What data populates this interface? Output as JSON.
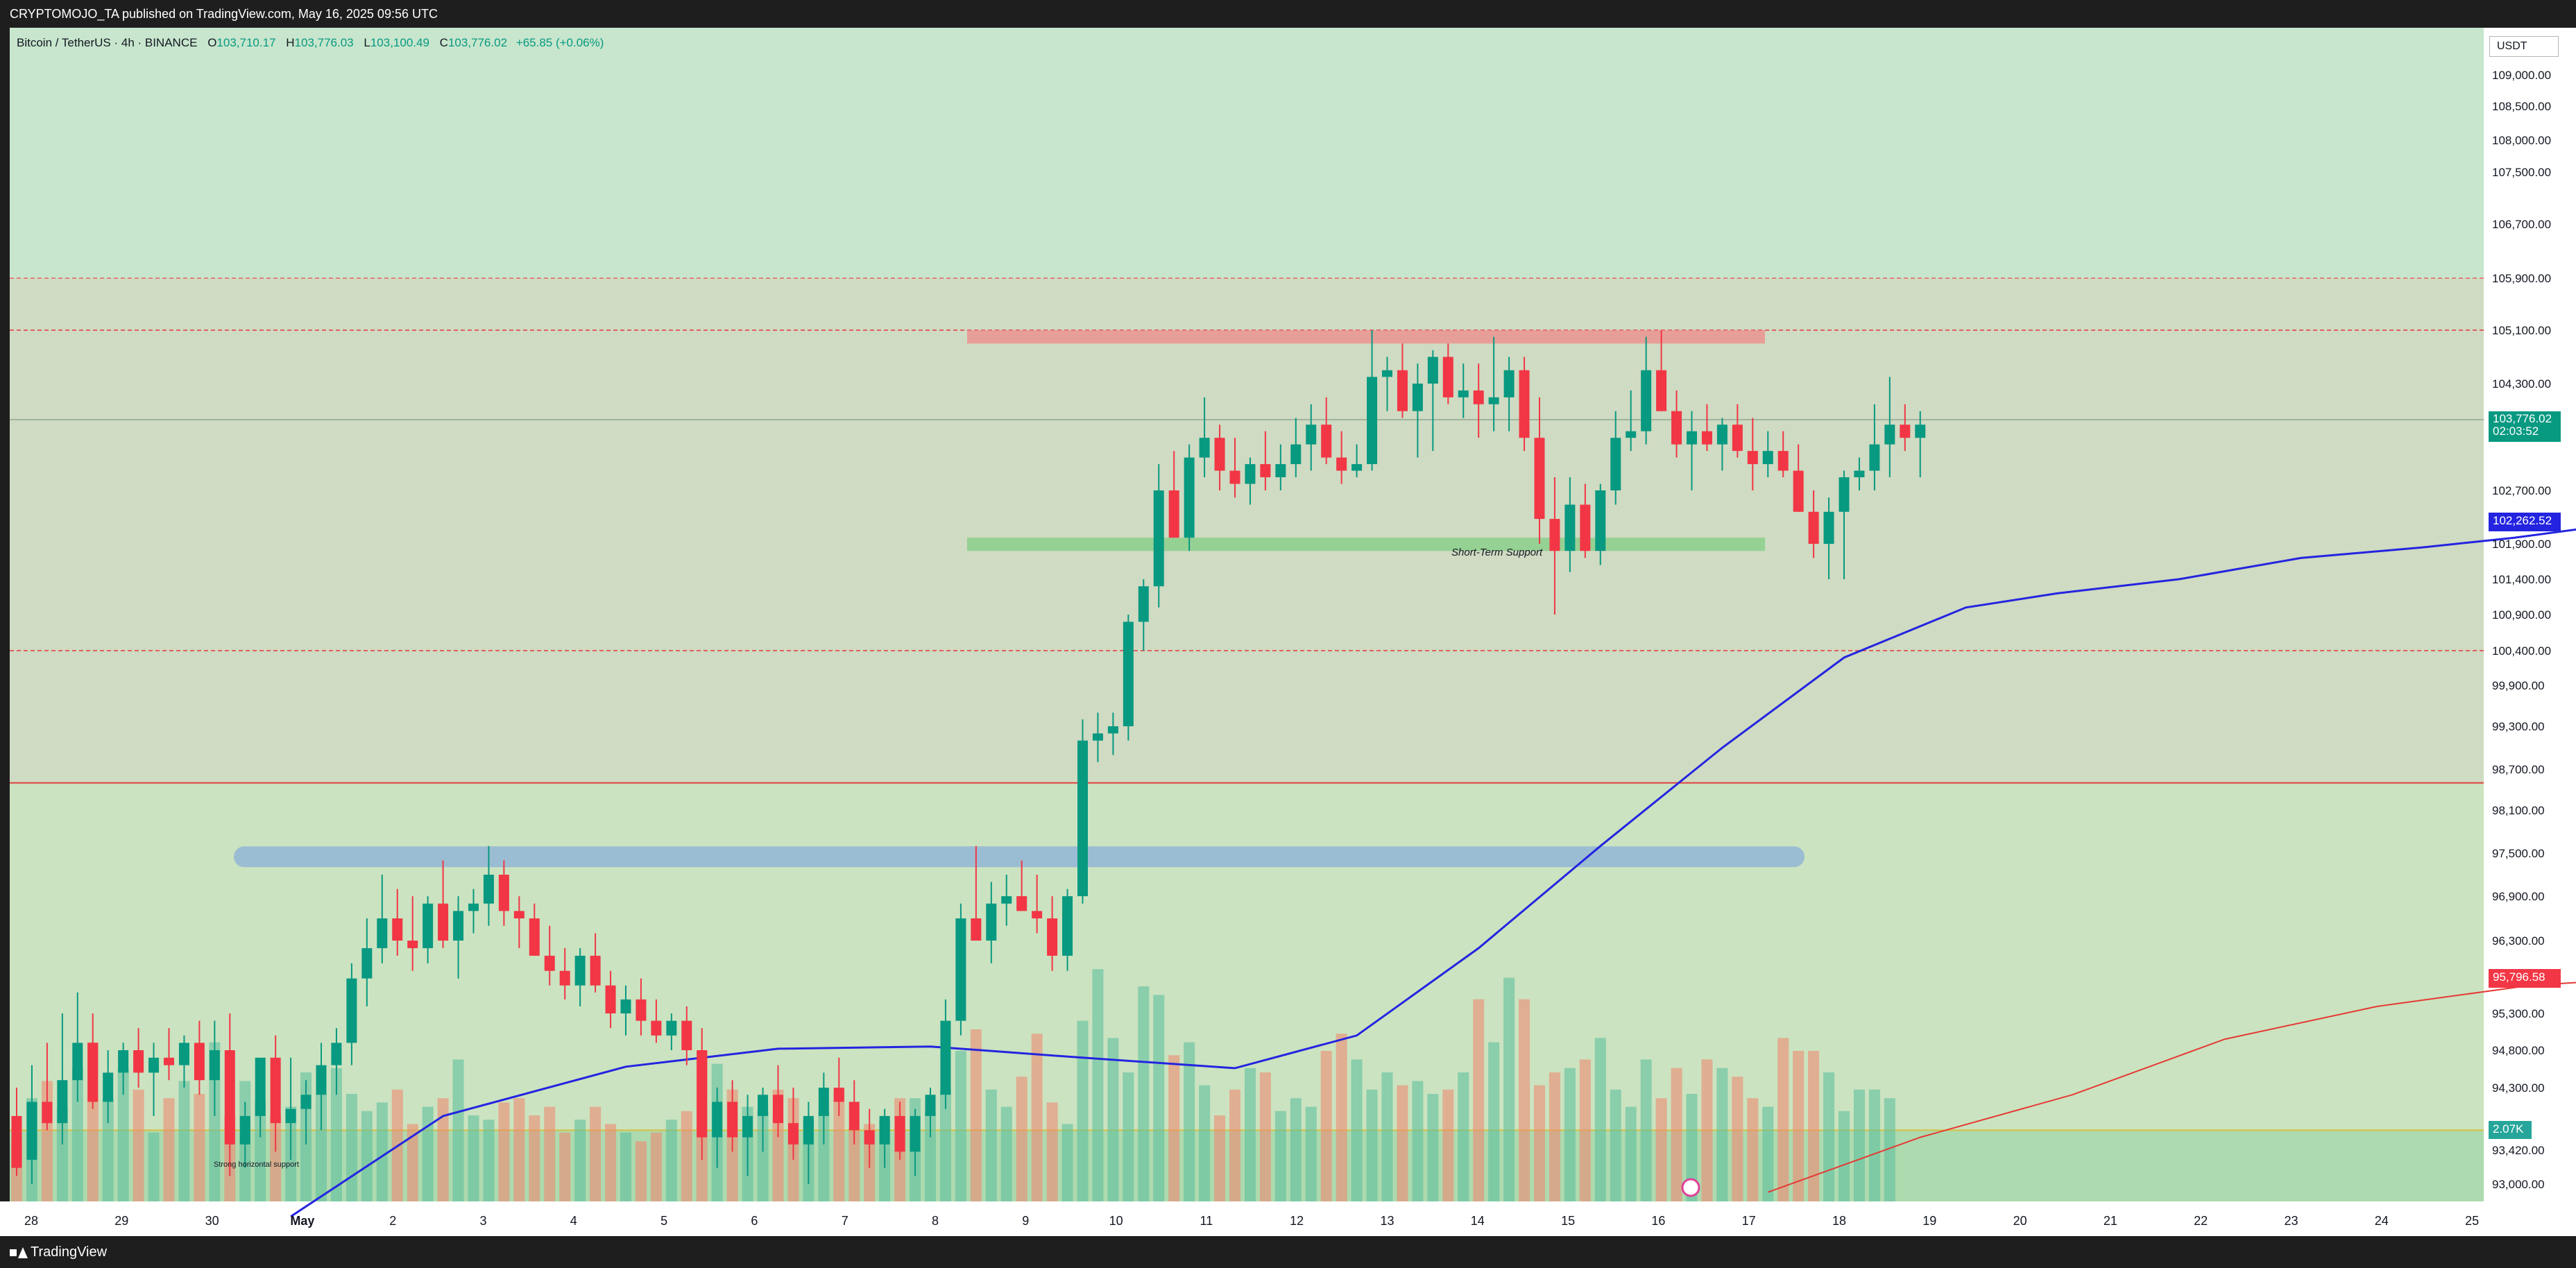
{
  "header": {
    "publisher": "CRYPTOMOJO_TA published on TradingView.com, May 16, 2025 09:56 UTC"
  },
  "footer": {
    "brand": "TradingView"
  },
  "legend": {
    "symbol": "Bitcoin / TetherUS · 4h · BINANCE",
    "o_label": "O",
    "o": "103,710.17",
    "h_label": "H",
    "h": "103,776.03",
    "l_label": "L",
    "l": "103,100.49",
    "c_label": "C",
    "c": "103,776.02",
    "change": "+65.85 (+0.06%)"
  },
  "currency": "USDT",
  "badges": {
    "price": "103,776.02",
    "countdown": "02:03:52",
    "ma_blue": "102,262.52",
    "ma_red": "95,796.58",
    "volume": "2.07K"
  },
  "colors": {
    "up": "#089981",
    "down": "#f23645",
    "ma_blue": "#2424e0",
    "ma_red": "#e53935",
    "bg_top": "#c7e6cd",
    "bg_mid": "#cfdbc2",
    "bg_low": "#cbe3c0"
  },
  "chart_data": {
    "type": "candlestick",
    "title": "Bitcoin / TetherUS · 4h · BINANCE",
    "y_ticks": [
      "109,000.00",
      "108,500.00",
      "108,000.00",
      "107,500.00",
      "106,700.00",
      "105,900.00",
      "105,100.00",
      "104,300.00",
      "102,700.00",
      "101,900.00",
      "101,400.00",
      "100,900.00",
      "100,400.00",
      "99,900.00",
      "99,300.00",
      "98,700.00",
      "98,100.00",
      "97,500.00",
      "96,900.00",
      "96,300.00",
      "95,300.00",
      "94,800.00",
      "94,300.00",
      "93,420.00",
      "93,000.00"
    ],
    "x_ticks": [
      "28",
      "29",
      "30",
      "May",
      "2",
      "3",
      "4",
      "5",
      "6",
      "7",
      "8",
      "9",
      "10",
      "11",
      "12",
      "13",
      "14",
      "15",
      "16",
      "17",
      "18",
      "19",
      "20",
      "21",
      "22",
      "23",
      "24",
      "25"
    ],
    "annotations": {
      "short_term_support": "Short-Term Support",
      "strong_support": "Strong horizontal support"
    },
    "horizontal_levels": [
      105900,
      105100,
      103776,
      100400,
      98500,
      93700
    ],
    "resistance_zone": [
      104900,
      105100
    ],
    "support_zone": [
      101800,
      102000
    ],
    "horizontal_support_band": 97450,
    "candles": [
      [
        93900,
        94300,
        93100,
        93200
      ],
      [
        93300,
        94600,
        93000,
        94100
      ],
      [
        94100,
        94900,
        93700,
        93800
      ],
      [
        93800,
        95300,
        93500,
        94400
      ],
      [
        94400,
        95600,
        94100,
        94900
      ],
      [
        94900,
        95300,
        94000,
        94100
      ],
      [
        94100,
        94800,
        93800,
        94500
      ],
      [
        94500,
        94900,
        94200,
        94800
      ],
      [
        94800,
        95100,
        94300,
        94500
      ],
      [
        94500,
        94900,
        93900,
        94700
      ],
      [
        94700,
        95100,
        94400,
        94600
      ],
      [
        94600,
        95000,
        94300,
        94900
      ],
      [
        94900,
        95200,
        94200,
        94400
      ],
      [
        94400,
        95200,
        93900,
        94800
      ],
      [
        94800,
        95300,
        93100,
        93500
      ],
      [
        93500,
        94100,
        93200,
        93900
      ],
      [
        93900,
        94600,
        93600,
        94700
      ],
      [
        94700,
        95000,
        93400,
        93800
      ],
      [
        93800,
        94700,
        93300,
        94000
      ],
      [
        94000,
        94400,
        93500,
        94200
      ],
      [
        94200,
        94900,
        93700,
        94600
      ],
      [
        94600,
        95100,
        94200,
        94900
      ],
      [
        94900,
        96000,
        94600,
        95800
      ],
      [
        95800,
        96600,
        95400,
        96200
      ],
      [
        96200,
        97200,
        96000,
        96600
      ],
      [
        96600,
        97000,
        96100,
        96300
      ],
      [
        96300,
        96900,
        95900,
        96200
      ],
      [
        96200,
        96900,
        96000,
        96800
      ],
      [
        96800,
        97400,
        96200,
        96300
      ],
      [
        96300,
        96900,
        95800,
        96700
      ],
      [
        96700,
        97000,
        96400,
        96800
      ],
      [
        96800,
        97600,
        96500,
        97200
      ],
      [
        97200,
        97400,
        96500,
        96700
      ],
      [
        96700,
        96900,
        96200,
        96600
      ],
      [
        96600,
        96800,
        96100,
        96100
      ],
      [
        96100,
        96500,
        95700,
        95900
      ],
      [
        95900,
        96200,
        95500,
        95700
      ],
      [
        95700,
        96200,
        95400,
        96100
      ],
      [
        96100,
        96400,
        95600,
        95700
      ],
      [
        95700,
        95900,
        95100,
        95300
      ],
      [
        95300,
        95700,
        95000,
        95500
      ],
      [
        95500,
        95800,
        95000,
        95200
      ],
      [
        95200,
        95500,
        94900,
        95000
      ],
      [
        95000,
        95300,
        94800,
        95200
      ],
      [
        95200,
        95400,
        94600,
        94800
      ],
      [
        94800,
        95100,
        93300,
        93600
      ],
      [
        93600,
        94300,
        93200,
        94100
      ],
      [
        94100,
        94400,
        93400,
        93600
      ],
      [
        93600,
        94200,
        93100,
        93900
      ],
      [
        93900,
        94300,
        93400,
        94200
      ],
      [
        94200,
        94600,
        93600,
        93800
      ],
      [
        93800,
        94300,
        93300,
        93500
      ],
      [
        93500,
        94100,
        93000,
        93900
      ],
      [
        93900,
        94500,
        93500,
        94300
      ],
      [
        94300,
        94700,
        93900,
        94100
      ],
      [
        94100,
        94400,
        93500,
        93700
      ],
      [
        93700,
        94000,
        93200,
        93500
      ],
      [
        93500,
        94000,
        93200,
        93900
      ],
      [
        93900,
        94100,
        93300,
        93400
      ],
      [
        93400,
        94000,
        93100,
        93900
      ],
      [
        93900,
        94300,
        93600,
        94200
      ],
      [
        94200,
        95500,
        94000,
        95200
      ],
      [
        95200,
        96800,
        95000,
        96600
      ],
      [
        96600,
        97600,
        96300,
        96300
      ],
      [
        96300,
        97100,
        96000,
        96800
      ],
      [
        96800,
        97200,
        96500,
        96900
      ],
      [
        96900,
        97400,
        96700,
        96700
      ],
      [
        96700,
        97200,
        96400,
        96600
      ],
      [
        96600,
        96900,
        95900,
        96100
      ],
      [
        96100,
        97000,
        95900,
        96900
      ],
      [
        96900,
        99400,
        96800,
        99100
      ],
      [
        99100,
        99500,
        98800,
        99200
      ],
      [
        99200,
        99500,
        98900,
        99300
      ],
      [
        99300,
        100900,
        99100,
        100800
      ],
      [
        100800,
        101400,
        100400,
        101300
      ],
      [
        101300,
        103100,
        101000,
        102700
      ],
      [
        102700,
        103300,
        102000,
        102000
      ],
      [
        102000,
        103400,
        101800,
        103200
      ],
      [
        103200,
        104100,
        102900,
        103500
      ],
      [
        103500,
        103700,
        102700,
        103000
      ],
      [
        103000,
        103500,
        102600,
        102800
      ],
      [
        102800,
        103200,
        102500,
        103100
      ],
      [
        103100,
        103600,
        102700,
        102900
      ],
      [
        102900,
        103400,
        102700,
        103100
      ],
      [
        103100,
        103800,
        102900,
        103400
      ],
      [
        103400,
        104000,
        103000,
        103700
      ],
      [
        103700,
        104100,
        103100,
        103200
      ],
      [
        103200,
        103600,
        102800,
        103000
      ],
      [
        103000,
        103400,
        102900,
        103100
      ],
      [
        103100,
        105100,
        103000,
        104400
      ],
      [
        104400,
        104700,
        103900,
        104500
      ],
      [
        104500,
        104900,
        103800,
        103900
      ],
      [
        103900,
        104600,
        103200,
        104300
      ],
      [
        104300,
        104800,
        103300,
        104700
      ],
      [
        104700,
        104900,
        104000,
        104100
      ],
      [
        104100,
        104600,
        103800,
        104200
      ],
      [
        104200,
        104600,
        103500,
        104000
      ],
      [
        104000,
        105000,
        103600,
        104100
      ],
      [
        104100,
        104700,
        103600,
        104500
      ],
      [
        104500,
        104700,
        103300,
        103500
      ],
      [
        103500,
        104100,
        101900,
        102300
      ],
      [
        102300,
        102900,
        100900,
        101800
      ],
      [
        101800,
        102900,
        101500,
        102500
      ],
      [
        102500,
        102800,
        101700,
        101800
      ],
      [
        101800,
        102800,
        101600,
        102700
      ],
      [
        102700,
        103900,
        102500,
        103500
      ],
      [
        103500,
        104200,
        103300,
        103600
      ],
      [
        103600,
        105000,
        103400,
        104500
      ],
      [
        104500,
        105100,
        103900,
        103900
      ],
      [
        103900,
        104200,
        103200,
        103400
      ],
      [
        103400,
        103900,
        102700,
        103600
      ],
      [
        103600,
        104000,
        103300,
        103400
      ],
      [
        103400,
        103800,
        103000,
        103700
      ],
      [
        103700,
        104000,
        103200,
        103300
      ],
      [
        103300,
        103800,
        102700,
        103100
      ],
      [
        103100,
        103600,
        102900,
        103300
      ],
      [
        103300,
        103600,
        102900,
        103000
      ],
      [
        103000,
        103400,
        102400,
        102400
      ],
      [
        102400,
        102700,
        101700,
        101900
      ],
      [
        101900,
        102600,
        101400,
        102400
      ],
      [
        102400,
        103000,
        101400,
        102900
      ],
      [
        102900,
        103200,
        102700,
        103000
      ],
      [
        103000,
        104000,
        102700,
        103400
      ],
      [
        103400,
        104400,
        102900,
        103700
      ],
      [
        103700,
        104000,
        103300,
        103500
      ],
      [
        103500,
        103900,
        102900,
        103700
      ]
    ],
    "volumes": [
      1.4,
      2.4,
      2.8,
      2.2,
      3.1,
      3.7,
      2.4,
      3.1,
      2.6,
      1.6,
      2.4,
      2.8,
      2.5,
      3.7,
      2.0,
      2.8,
      2.3,
      2.0,
      2.2,
      3.0,
      2.5,
      3.1,
      2.5,
      2.1,
      2.3,
      2.6,
      1.8,
      2.2,
      2.4,
      3.3,
      2.0,
      1.9,
      2.3,
      2.4,
      2.0,
      2.2,
      1.6,
      1.9,
      2.2,
      1.8,
      1.6,
      1.4,
      1.6,
      1.9,
      2.1,
      3.5,
      3.2,
      2.6,
      2.2,
      2.1,
      2.6,
      2.4,
      1.9,
      2.1,
      2.6,
      1.7,
      1.8,
      1.9,
      2.4,
      2.4,
      2.1,
      2.6,
      3.5,
      4.0,
      2.6,
      2.2,
      2.9,
      3.9,
      2.3,
      1.8,
      4.2,
      5.4,
      3.8,
      3.0,
      5.0,
      4.8,
      3.4,
      3.7,
      2.7,
      2.0,
      2.6,
      3.1,
      3.0,
      2.1,
      2.4,
      2.2,
      3.5,
      3.9,
      3.3,
      2.6,
      3.0,
      2.7,
      2.8,
      2.5,
      2.6,
      3.0,
      4.7,
      3.7,
      5.2,
      4.7,
      2.7,
      3.0,
      3.1,
      3.3,
      3.8,
      2.6,
      2.2,
      3.3,
      2.4,
      3.1,
      2.5,
      3.3,
      3.1,
      2.9,
      2.4,
      2.2,
      3.8,
      3.5,
      3.5,
      3.0,
      2.1,
      2.6,
      2.6,
      2.4
    ],
    "ma_blue": [
      [
        18,
        92600
      ],
      [
        28,
        93900
      ],
      [
        40,
        94580
      ],
      [
        50,
        94820
      ],
      [
        60,
        94850
      ],
      [
        70,
        94700
      ],
      [
        80,
        94560
      ],
      [
        88,
        95000
      ],
      [
        96,
        96200
      ],
      [
        104,
        97600
      ],
      [
        112,
        99000
      ],
      [
        120,
        100300
      ],
      [
        128,
        101000
      ],
      [
        134,
        101200
      ],
      [
        142,
        101400
      ],
      [
        150,
        101700
      ],
      [
        158,
        101850
      ],
      [
        164,
        102000
      ],
      [
        172,
        102262
      ]
    ],
    "ma_red": [
      [
        115,
        92900
      ],
      [
        125,
        93600
      ],
      [
        135,
        94200
      ],
      [
        145,
        94950
      ],
      [
        155,
        95400
      ],
      [
        165,
        95700
      ],
      [
        172,
        95796
      ]
    ],
    "ylim": [
      92700,
      109300
    ]
  }
}
